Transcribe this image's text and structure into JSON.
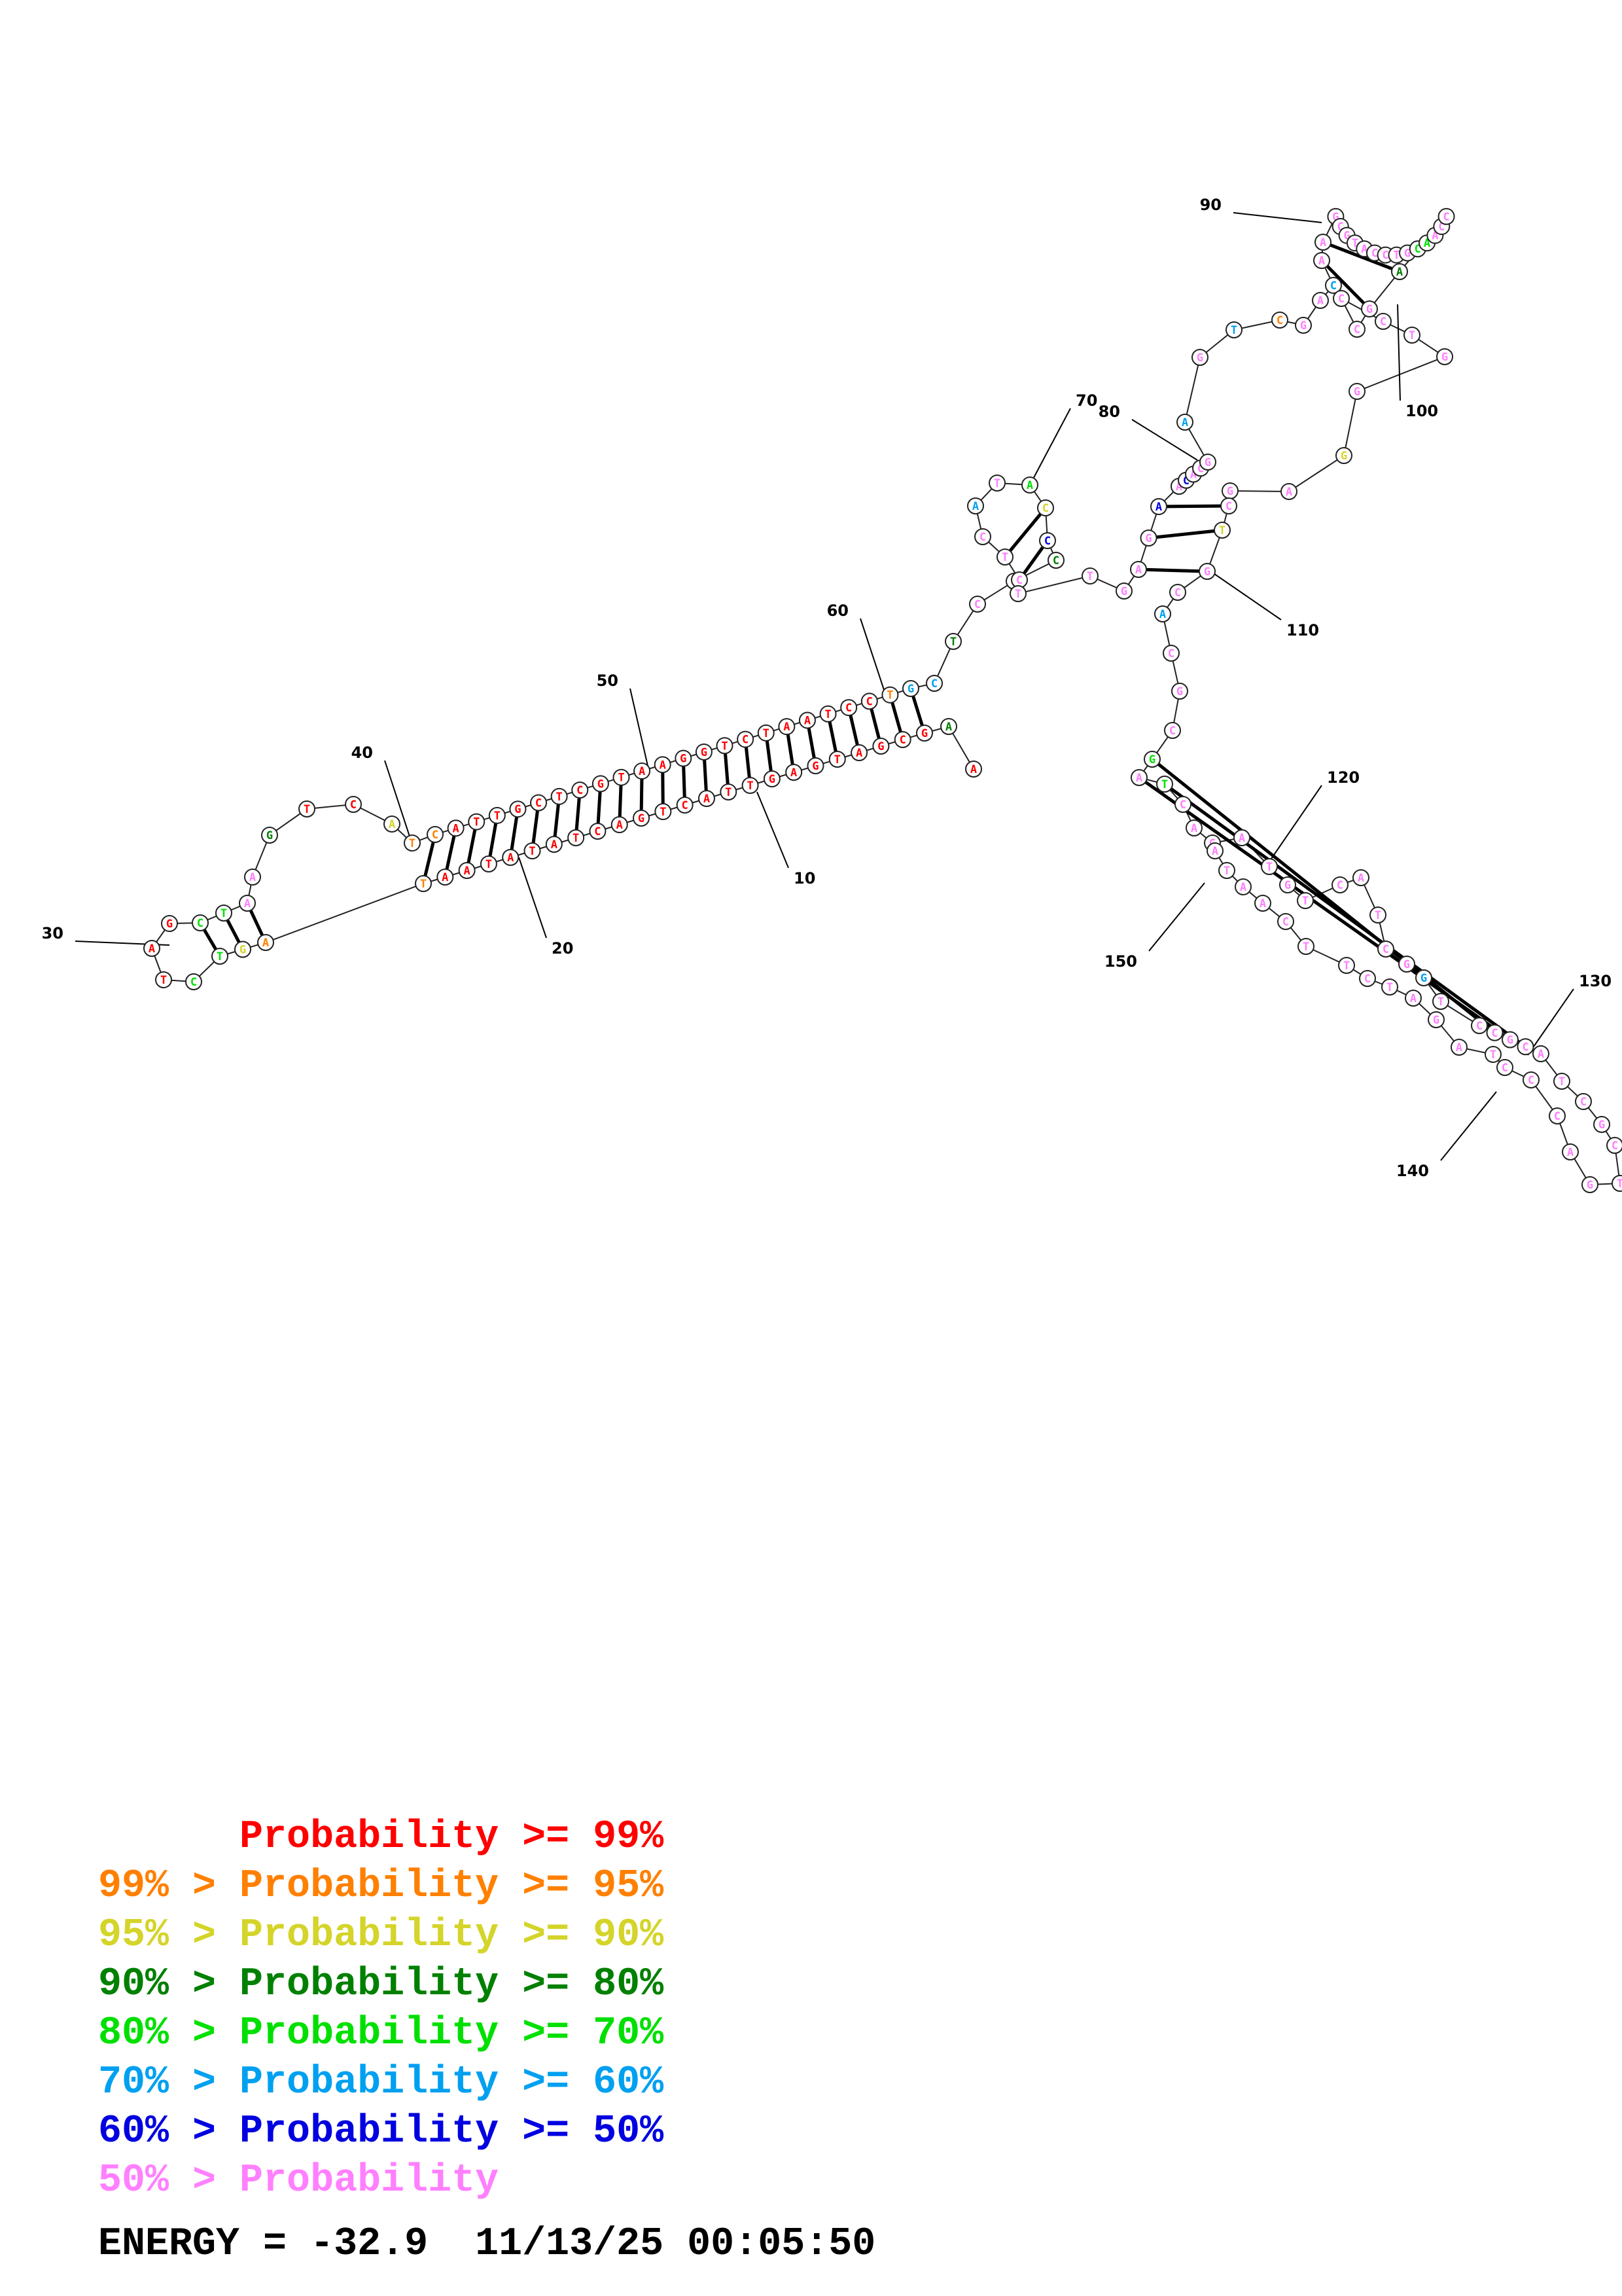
{
  "diagram": {
    "sequence": "AAGCGATGAGTTACTGACTATATAATAGTCTAGCTAAGTCATCATTGCTCGTAAGGTCTAATCCTGCTCCCCCATACTCTTGAGAACACGAGTCGACAAGCGTACCTGCAACCAGCCCTGGGAGCTGCACGCGATCAGATGTCATCGGTCCGCATCGCTGACCCTAGATCTTCAATAGC",
    "colors": {
      "p99": "#ff0000",
      "p95": "#ff8000",
      "p90": "#d4d42a",
      "p80": "#008000",
      "p70": "#00e000",
      "p60": "#00a0f0",
      "p50": "#0000e0",
      "low": "#ff80ff"
    }
  },
  "legend": {
    "rows": [
      {
        "left": "",
        "mid": "Probability",
        "op": ">=",
        "val": "99%",
        "color": "#ff0000"
      },
      {
        "left": "99%",
        "mid": "Probability",
        "op": ">=",
        "val": "95%",
        "color": "#ff8000"
      },
      {
        "left": "95%",
        "mid": "Probability",
        "op": ">=",
        "val": "90%",
        "color": "#d4d42a"
      },
      {
        "left": "90%",
        "mid": "Probability",
        "op": ">=",
        "val": "80%",
        "color": "#008000"
      },
      {
        "left": "80%",
        "mid": "Probability",
        "op": ">=",
        "val": "70%",
        "color": "#00e000"
      },
      {
        "left": "70%",
        "mid": "Probability",
        "op": ">=",
        "val": "60%",
        "color": "#00a0f0"
      },
      {
        "left": "60%",
        "mid": "Probability",
        "op": ">=",
        "val": "50%",
        "color": "#0000e0"
      },
      {
        "left": "50%",
        "mid": "Probability",
        "op": "",
        "val": "",
        "color": "#ff80ff"
      }
    ]
  },
  "footer": {
    "energy_label": "ENERGY =",
    "energy_value": "-32.9",
    "date": "11/13/25",
    "time": "00:05:50"
  }
}
